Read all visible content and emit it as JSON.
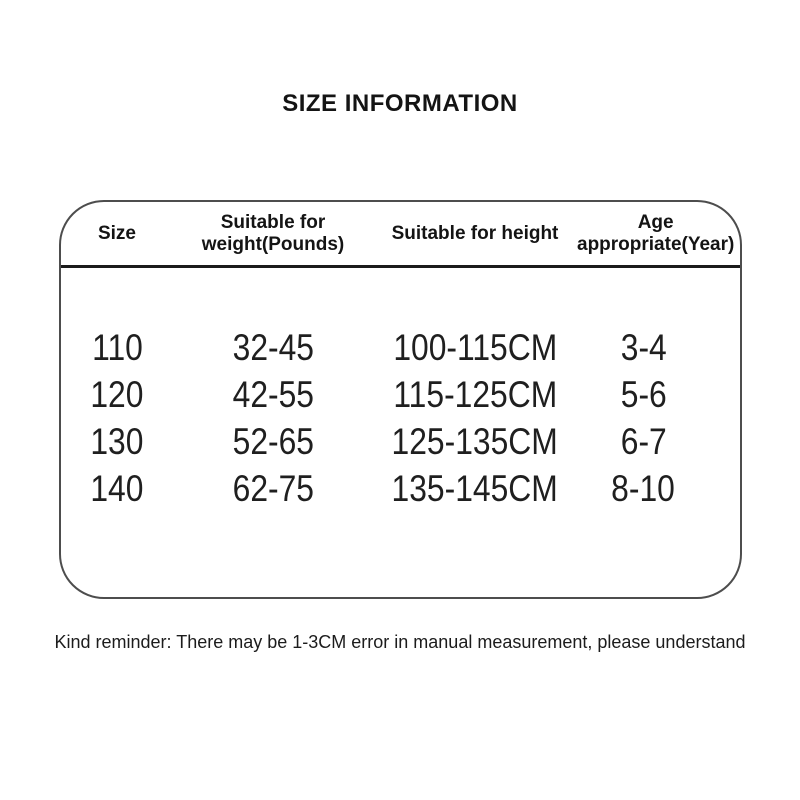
{
  "title": "SIZE INFORMATION",
  "table": {
    "headers": [
      "Size",
      "Suitable for weight(Pounds)",
      "Suitable for height",
      "Age appropriate(Year)"
    ],
    "rows": [
      [
        "110",
        "32-45",
        "100-115CM",
        "3-4"
      ],
      [
        "120",
        "42-55",
        "115-125CM",
        "5-6"
      ],
      [
        "130",
        "52-65",
        "125-135CM",
        "6-7"
      ],
      [
        "140",
        "62-75",
        "135-145CM",
        "8-10"
      ]
    ]
  },
  "footer": {
    "note": "Kind reminder: There may be 1-3CM error in manual measurement, please understand"
  },
  "colors": {
    "text": "#1a1a1a",
    "table_border": "#4d4d4d",
    "header_divider": "#1b1b1b",
    "background": "#ffffff"
  },
  "chart_data": {
    "type": "table",
    "title": "SIZE INFORMATION",
    "columns": [
      "Size",
      "Suitable for weight(Pounds)",
      "Suitable for height",
      "Age appropriate(Year)"
    ],
    "rows": [
      [
        "110",
        "32-45",
        "100-115CM",
        "3-4"
      ],
      [
        "120",
        "42-55",
        "115-125CM",
        "5-6"
      ],
      [
        "130",
        "52-65",
        "125-135CM",
        "6-7"
      ],
      [
        "140",
        "62-75",
        "135-145CM",
        "8-10"
      ]
    ],
    "note": "Kind reminder: There may be 1-3CM error in manual measurement, please understand"
  }
}
